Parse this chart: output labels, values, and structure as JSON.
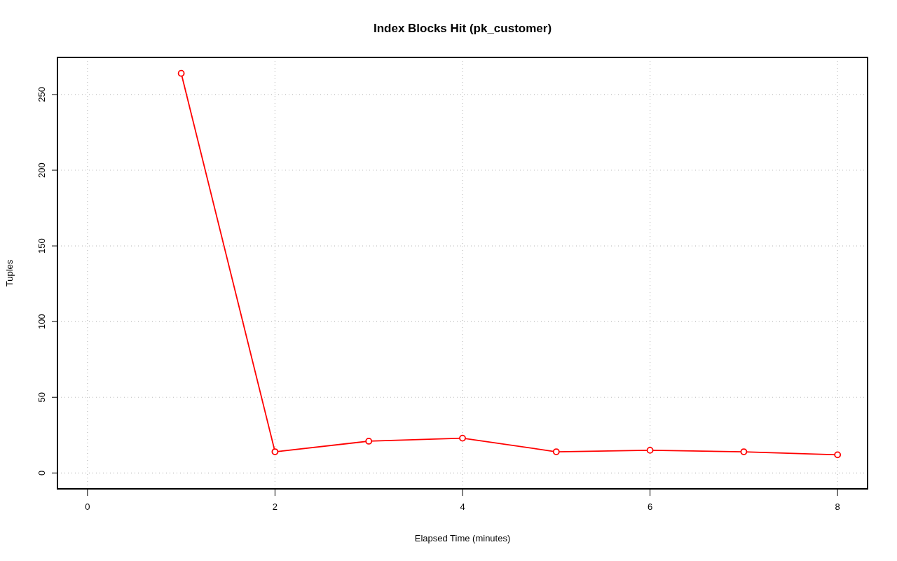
{
  "chart_data": {
    "type": "line",
    "title": "Index Blocks Hit (pk_customer)",
    "xlabel": "Elapsed Time (minutes)",
    "ylabel": "Tuples",
    "x": [
      1,
      2,
      3,
      4,
      5,
      6,
      7,
      8
    ],
    "series": [
      {
        "color": "#ff0000",
        "values": [
          264,
          14,
          21,
          23,
          14,
          15,
          14,
          12
        ]
      }
    ],
    "xlim": [
      -0.32,
      8.32
    ],
    "ylim": [
      -10.5,
      274.5
    ],
    "xticks": [
      0,
      2,
      4,
      6,
      8
    ],
    "yticks": [
      0,
      50,
      100,
      150,
      200,
      250
    ],
    "grid": true,
    "marker": "circle",
    "line_style": "solid"
  }
}
